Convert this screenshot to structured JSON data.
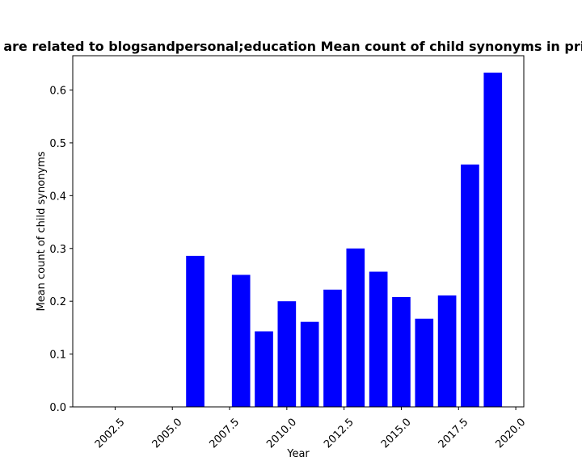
{
  "chart_data": {
    "type": "bar",
    "title": "are related to blogsandpersonal;education Mean count of child synonyms in priv",
    "xlabel": "Year",
    "ylabel": "Mean count of child synonyms",
    "bar_color": "#0000ff",
    "x": [
      2006,
      2008,
      2009,
      2010,
      2011,
      2012,
      2013,
      2014,
      2015,
      2016,
      2017,
      2018,
      2019
    ],
    "values": [
      0.286,
      0.25,
      0.143,
      0.2,
      0.161,
      0.222,
      0.3,
      0.256,
      0.208,
      0.167,
      0.211,
      0.459,
      0.633
    ],
    "bar_width": 0.8,
    "xlim": [
      2000.65,
      2020.35
    ],
    "ylim": [
      0,
      0.665
    ],
    "xticks": [
      2002.5,
      2005.0,
      2007.5,
      2010.0,
      2012.5,
      2015.0,
      2017.5,
      2020.0
    ],
    "xtick_labels": [
      "2002.5",
      "2005.0",
      "2007.5",
      "2010.0",
      "2012.5",
      "2015.0",
      "2017.5",
      "2020.0"
    ],
    "yticks": [
      0.0,
      0.1,
      0.2,
      0.3,
      0.4,
      0.5,
      0.6
    ],
    "ytick_labels": [
      "0.0",
      "0.1",
      "0.2",
      "0.3",
      "0.4",
      "0.5",
      "0.6"
    ],
    "grid": false,
    "legend": "none"
  }
}
